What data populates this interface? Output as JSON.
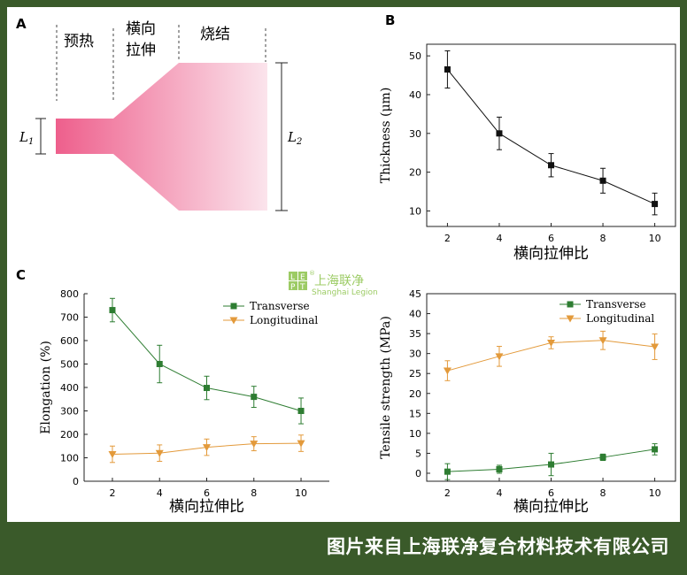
{
  "panel_a": {
    "label": "A",
    "stage_preheat": "预热",
    "stage_stretch_1": "横向",
    "stage_stretch_2": "拉伸",
    "stage_sinter": "烧结",
    "dim_l1": "L",
    "dim_l1_sub": "1",
    "dim_l2": "L",
    "dim_l2_sub": "2",
    "colors": {
      "film_dark": "#ee5f8c",
      "film_light": "#fbe4ec"
    }
  },
  "watermark": {
    "letters": [
      "L",
      "E",
      "P",
      "T"
    ],
    "name": "上海联净",
    "subtitle": "Shanghai Legion",
    "mark": "®",
    "color": "#8bc34a"
  },
  "footer": {
    "text": "图片来自上海联净复合材料技术有限公司"
  },
  "chart_data": [
    {
      "panel": "B",
      "type": "line",
      "xlabel": "横向拉伸比",
      "ylabel": "Thickness (μm)",
      "x": [
        2,
        4,
        6,
        8,
        10
      ],
      "xlim": [
        1.2,
        10.8
      ],
      "ylim": [
        6,
        53
      ],
      "yticks": [
        10,
        20,
        30,
        40,
        50
      ],
      "series": [
        {
          "values": [
            46.5,
            30,
            21.8,
            17.8,
            11.8
          ],
          "errors": [
            4.8,
            4.2,
            3,
            3.2,
            2.8
          ],
          "marker": "square",
          "color": "#111111"
        }
      ]
    },
    {
      "panel": "C",
      "type": "line",
      "xlabel": "横向拉伸比",
      "ylabel": "Elongation (%)",
      "x": [
        2,
        4,
        6,
        8,
        10
      ],
      "xlim": [
        0.8,
        11.2
      ],
      "ylim": [
        0,
        800
      ],
      "yticks": [
        0,
        100,
        200,
        300,
        400,
        500,
        600,
        700,
        800
      ],
      "legend": "top-right",
      "series": [
        {
          "name": "Transverse",
          "values": [
            730,
            500,
            398,
            360,
            300
          ],
          "errors": [
            50,
            80,
            50,
            45,
            55
          ],
          "marker": "square",
          "color": "#2e7d32"
        },
        {
          "name": "Longitudinal",
          "values": [
            115,
            120,
            145,
            160,
            162
          ],
          "errors": [
            35,
            35,
            35,
            30,
            35
          ],
          "marker": "triangle-down",
          "color": "#e39a3b"
        }
      ]
    },
    {
      "panel": "C2",
      "type": "line",
      "xlabel": "横向拉伸比",
      "ylabel": "Tensile strength (MPa)",
      "x": [
        2,
        4,
        6,
        8,
        10
      ],
      "xlim": [
        1.2,
        10.8
      ],
      "ylim": [
        -2,
        45
      ],
      "yticks": [
        0,
        5,
        10,
        15,
        20,
        25,
        30,
        35,
        40,
        45
      ],
      "legend": "top-right",
      "series": [
        {
          "name": "Transverse",
          "values": [
            0.4,
            1,
            2.2,
            4,
            6
          ],
          "errors": [
            2,
            1,
            2.8,
            0.8,
            1.4
          ],
          "marker": "square",
          "color": "#2e7d32"
        },
        {
          "name": "Longitudinal",
          "values": [
            25.7,
            29.3,
            32.7,
            33.3,
            31.7
          ],
          "errors": [
            2.5,
            2.5,
            1.5,
            2.3,
            3.2
          ],
          "marker": "triangle-down",
          "color": "#e39a3b"
        }
      ]
    }
  ]
}
